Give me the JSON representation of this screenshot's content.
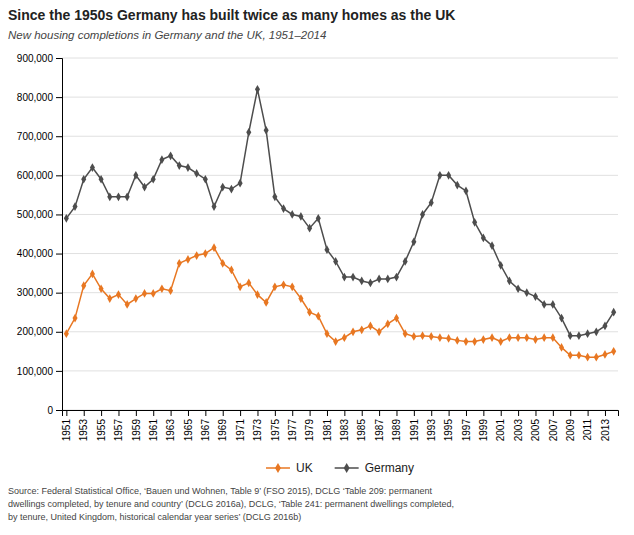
{
  "chart_data": {
    "type": "line",
    "title": "Since the 1950s Germany has built twice as many homes as the UK",
    "subtitle": "New housing completions in Germany and the UK, 1951–2014",
    "source": "Source: Federal Statistical Office, ‘Bauen und Wohnen, Table 9’ (FSO 2015), DCLG ‘Table 209: permanent\ndwellings completed, by tenure and country’ (DCLG 2016a), DCLG, ‘Table 241: permanent dwellings completed,\nby tenure, United Kingdom, historical calendar year series’ (DCLG 2016b)",
    "x": [
      1951,
      1952,
      1953,
      1954,
      1955,
      1956,
      1957,
      1958,
      1959,
      1960,
      1961,
      1962,
      1963,
      1964,
      1965,
      1966,
      1967,
      1968,
      1969,
      1970,
      1971,
      1972,
      1973,
      1974,
      1975,
      1976,
      1977,
      1978,
      1979,
      1980,
      1981,
      1982,
      1983,
      1984,
      1985,
      1986,
      1987,
      1988,
      1989,
      1990,
      1991,
      1992,
      1993,
      1994,
      1995,
      1996,
      1997,
      1998,
      1999,
      2000,
      2001,
      2002,
      2003,
      2004,
      2005,
      2006,
      2007,
      2008,
      2009,
      2010,
      2011,
      2012,
      2013,
      2014
    ],
    "series": [
      {
        "name": "UK",
        "color": "#e87722",
        "marker": "diamond",
        "line_style": "solid",
        "values": [
          195000,
          235000,
          318000,
          348000,
          310000,
          285000,
          295000,
          270000,
          285000,
          298000,
          298000,
          310000,
          305000,
          375000,
          385000,
          395000,
          400000,
          415000,
          375000,
          358000,
          315000,
          325000,
          295000,
          275000,
          315000,
          320000,
          315000,
          285000,
          250000,
          240000,
          195000,
          175000,
          185000,
          200000,
          205000,
          215000,
          200000,
          220000,
          235000,
          195000,
          188000,
          190000,
          188000,
          185000,
          183000,
          178000,
          175000,
          175000,
          180000,
          185000,
          175000,
          185000,
          185000,
          185000,
          180000,
          185000,
          185000,
          160000,
          140000,
          140000,
          135000,
          135000,
          142000,
          150000
        ]
      },
      {
        "name": "Germany",
        "color": "#4d4d4d",
        "marker": "diamond",
        "line_style": "solid",
        "values": [
          490000,
          520000,
          590000,
          620000,
          590000,
          545000,
          545000,
          545000,
          600000,
          570000,
          590000,
          640000,
          650000,
          625000,
          620000,
          605000,
          590000,
          520000,
          570000,
          565000,
          580000,
          710000,
          820000,
          715000,
          545000,
          515000,
          500000,
          495000,
          465000,
          490000,
          410000,
          380000,
          340000,
          340000,
          330000,
          325000,
          335000,
          335000,
          340000,
          380000,
          430000,
          500000,
          530000,
          600000,
          600000,
          575000,
          560000,
          480000,
          440000,
          420000,
          370000,
          330000,
          310000,
          300000,
          290000,
          270000,
          270000,
          235000,
          190000,
          190000,
          195000,
          200000,
          215000,
          250000
        ]
      }
    ],
    "xlim": [
      1950.5,
      2014.5
    ],
    "xticks": [
      1951,
      1953,
      1955,
      1957,
      1959,
      1961,
      1963,
      1965,
      1967,
      1969,
      1971,
      1973,
      1975,
      1977,
      1979,
      1981,
      1983,
      1985,
      1987,
      1989,
      1991,
      1993,
      1995,
      1997,
      1999,
      2001,
      2003,
      2005,
      2007,
      2009,
      2011,
      2013
    ],
    "ylim": [
      0,
      900000
    ],
    "yticks": [
      0,
      {
        "value": 100000,
        "label": "100,000"
      },
      {
        "value": 200000,
        "label": "200,000"
      },
      {
        "value": 300000,
        "label": "300,000"
      },
      {
        "value": 400000,
        "label": "400,000"
      },
      {
        "value": 500000,
        "label": "500,000"
      },
      {
        "value": 600000,
        "label": "600,000"
      },
      {
        "value": 700000,
        "label": "700,000"
      },
      {
        "value": 800000,
        "label": "800,000"
      },
      {
        "value": 900000,
        "label": "900,000"
      }
    ],
    "grid": true,
    "legend": "bottom"
  }
}
